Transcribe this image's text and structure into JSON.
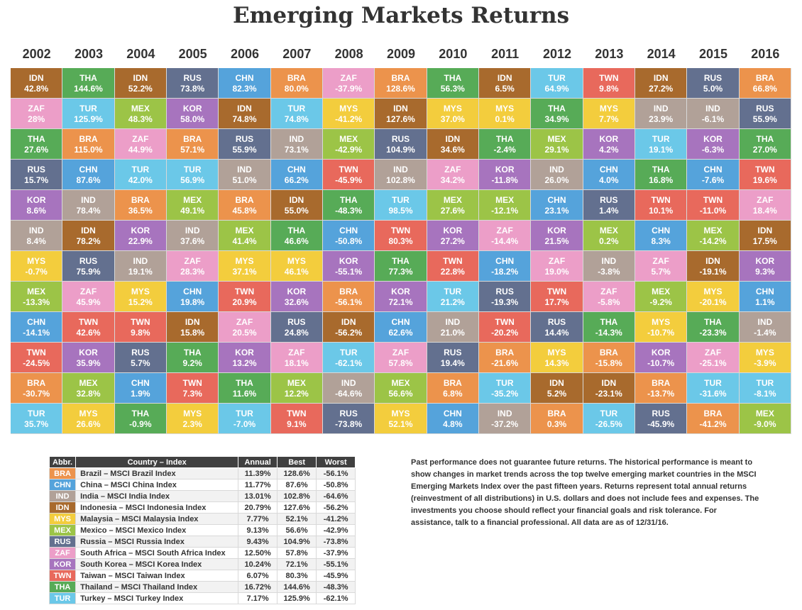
{
  "chart_data": {
    "type": "table",
    "title": "Emerging Markets Returns",
    "years": [
      "2002",
      "2003",
      "2004",
      "2005",
      "2006",
      "2007",
      "2008",
      "2009",
      "2010",
      "2011",
      "2012",
      "2013",
      "2014",
      "2015",
      "2016"
    ],
    "columns": [
      [
        [
          "IDN",
          "42.8%"
        ],
        [
          "ZAF",
          "28%"
        ],
        [
          "THA",
          "27.6%"
        ],
        [
          "RUS",
          "15.7%"
        ],
        [
          "KOR",
          "8.6%"
        ],
        [
          "IND",
          "8.4%"
        ],
        [
          "MYS",
          "-0.7%"
        ],
        [
          "MEX",
          "-13.3%"
        ],
        [
          "CHN",
          "-14.1%"
        ],
        [
          "TWN",
          "-24.5%"
        ],
        [
          "BRA",
          "-30.7%"
        ],
        [
          "TUR",
          "35.7%"
        ]
      ],
      [
        [
          "THA",
          "144.6%"
        ],
        [
          "TUR",
          "125.9%"
        ],
        [
          "BRA",
          "115.0%"
        ],
        [
          "CHN",
          "87.6%"
        ],
        [
          "IND",
          "78.4%"
        ],
        [
          "IDN",
          "78.2%"
        ],
        [
          "RUS",
          "75.9%"
        ],
        [
          "ZAF",
          "45.9%"
        ],
        [
          "TWN",
          "42.6%"
        ],
        [
          "KOR",
          "35.9%"
        ],
        [
          "MEX",
          "32.8%"
        ],
        [
          "MYS",
          "26.6%"
        ]
      ],
      [
        [
          "IDN",
          "52.2%"
        ],
        [
          "MEX",
          "48.3%"
        ],
        [
          "ZAF",
          "44.9%"
        ],
        [
          "TUR",
          "42.0%"
        ],
        [
          "BRA",
          "36.5%"
        ],
        [
          "KOR",
          "22.9%"
        ],
        [
          "IND",
          "19.1%"
        ],
        [
          "MYS",
          "15.2%"
        ],
        [
          "TWN",
          "9.8%"
        ],
        [
          "RUS",
          "5.7%"
        ],
        [
          "CHN",
          "1.9%"
        ],
        [
          "THA",
          "-0.9%"
        ]
      ],
      [
        [
          "RUS",
          "73.8%"
        ],
        [
          "KOR",
          "58.0%"
        ],
        [
          "BRA",
          "57.1%"
        ],
        [
          "TUR",
          "56.9%"
        ],
        [
          "MEX",
          "49.1%"
        ],
        [
          "IND",
          "37.6%"
        ],
        [
          "ZAF",
          "28.3%"
        ],
        [
          "CHN",
          "19.8%"
        ],
        [
          "IDN",
          "15.8%"
        ],
        [
          "THA",
          "9.2%"
        ],
        [
          "TWN",
          "7.3%"
        ],
        [
          "MYS",
          "2.3%"
        ]
      ],
      [
        [
          "CHN",
          "82.3%"
        ],
        [
          "IDN",
          "74.8%"
        ],
        [
          "RUS",
          "55.9%"
        ],
        [
          "IND",
          "51.0%"
        ],
        [
          "BRA",
          "45.8%"
        ],
        [
          "MEX",
          "41.4%"
        ],
        [
          "MYS",
          "37.1%"
        ],
        [
          "TWN",
          "20.9%"
        ],
        [
          "ZAF",
          "20.5%"
        ],
        [
          "KOR",
          "13.2%"
        ],
        [
          "THA",
          "11.6%"
        ],
        [
          "TUR",
          "-7.0%"
        ]
      ],
      [
        [
          "BRA",
          "80.0%"
        ],
        [
          "TUR",
          "74.8%"
        ],
        [
          "IND",
          "73.1%"
        ],
        [
          "CHN",
          "66.2%"
        ],
        [
          "IDN",
          "55.0%"
        ],
        [
          "THA",
          "46.6%"
        ],
        [
          "MYS",
          "46.1%"
        ],
        [
          "KOR",
          "32.6%"
        ],
        [
          "RUS",
          "24.8%"
        ],
        [
          "ZAF",
          "18.1%"
        ],
        [
          "MEX",
          "12.2%"
        ],
        [
          "TWN",
          "9.1%"
        ]
      ],
      [
        [
          "ZAF",
          "-37.9%"
        ],
        [
          "MYS",
          "-41.2%"
        ],
        [
          "MEX",
          "-42.9%"
        ],
        [
          "TWN",
          "-45.9%"
        ],
        [
          "THA",
          "-48.3%"
        ],
        [
          "CHN",
          "-50.8%"
        ],
        [
          "KOR",
          "-55.1%"
        ],
        [
          "BRA",
          "-56.1%"
        ],
        [
          "IDN",
          "-56.2%"
        ],
        [
          "TUR",
          "-62.1%"
        ],
        [
          "IND",
          "-64.6%"
        ],
        [
          "RUS",
          "-73.8%"
        ]
      ],
      [
        [
          "BRA",
          "128.6%"
        ],
        [
          "IDN",
          "127.6%"
        ],
        [
          "RUS",
          "104.9%"
        ],
        [
          "IND",
          "102.8%"
        ],
        [
          "TUR",
          "98.5%"
        ],
        [
          "TWN",
          "80.3%"
        ],
        [
          "THA",
          "77.3%"
        ],
        [
          "KOR",
          "72.1%"
        ],
        [
          "CHN",
          "62.6%"
        ],
        [
          "ZAF",
          "57.8%"
        ],
        [
          "MEX",
          "56.6%"
        ],
        [
          "MYS",
          "52.1%"
        ]
      ],
      [
        [
          "THA",
          "56.3%"
        ],
        [
          "MYS",
          "37.0%"
        ],
        [
          "IDN",
          "34.6%"
        ],
        [
          "ZAF",
          "34.2%"
        ],
        [
          "MEX",
          "27.6%"
        ],
        [
          "KOR",
          "27.2%"
        ],
        [
          "TWN",
          "22.8%"
        ],
        [
          "TUR",
          "21.2%"
        ],
        [
          "IND",
          "21.0%"
        ],
        [
          "RUS",
          "19.4%"
        ],
        [
          "BRA",
          "6.8%"
        ],
        [
          "CHN",
          "4.8%"
        ]
      ],
      [
        [
          "IDN",
          "6.5%"
        ],
        [
          "MYS",
          "0.1%"
        ],
        [
          "THA",
          "-2.4%"
        ],
        [
          "KOR",
          "-11.8%"
        ],
        [
          "MEX",
          "-12.1%"
        ],
        [
          "ZAF",
          "-14.4%"
        ],
        [
          "CHN",
          "-18.2%"
        ],
        [
          "RUS",
          "-19.3%"
        ],
        [
          "TWN",
          "-20.2%"
        ],
        [
          "BRA",
          "-21.6%"
        ],
        [
          "TUR",
          "-35.2%"
        ],
        [
          "IND",
          "-37.2%"
        ]
      ],
      [
        [
          "TUR",
          "64.9%"
        ],
        [
          "THA",
          "34.9%"
        ],
        [
          "MEX",
          "29.1%"
        ],
        [
          "IND",
          "26.0%"
        ],
        [
          "CHN",
          "23.1%"
        ],
        [
          "KOR",
          "21.5%"
        ],
        [
          "ZAF",
          "19.0%"
        ],
        [
          "TWN",
          "17.7%"
        ],
        [
          "RUS",
          "14.4%"
        ],
        [
          "MYS",
          "14.3%"
        ],
        [
          "IDN",
          "5.2%"
        ],
        [
          "BRA",
          "0.3%"
        ]
      ],
      [
        [
          "TWN",
          "9.8%"
        ],
        [
          "MYS",
          "7.7%"
        ],
        [
          "KOR",
          "4.2%"
        ],
        [
          "CHN",
          "4.0%"
        ],
        [
          "RUS",
          "1.4%"
        ],
        [
          "MEX",
          "0.2%"
        ],
        [
          "IND",
          "-3.8%"
        ],
        [
          "ZAF",
          "-5.8%"
        ],
        [
          "THA",
          "-14.3%"
        ],
        [
          "BRA",
          "-15.8%"
        ],
        [
          "IDN",
          "-23.1%"
        ],
        [
          "TUR",
          "-26.5%"
        ]
      ],
      [
        [
          "IDN",
          "27.2%"
        ],
        [
          "IND",
          "23.9%"
        ],
        [
          "TUR",
          "19.1%"
        ],
        [
          "THA",
          "16.8%"
        ],
        [
          "TWN",
          "10.1%"
        ],
        [
          "CHN",
          "8.3%"
        ],
        [
          "ZAF",
          "5.7%"
        ],
        [
          "MEX",
          "-9.2%"
        ],
        [
          "MYS",
          "-10.7%"
        ],
        [
          "KOR",
          "-10.7%"
        ],
        [
          "BRA",
          "-13.7%"
        ],
        [
          "RUS",
          "-45.9%"
        ]
      ],
      [
        [
          "RUS",
          "5.0%"
        ],
        [
          "IND",
          "-6.1%"
        ],
        [
          "KOR",
          "-6.3%"
        ],
        [
          "CHN",
          "-7.6%"
        ],
        [
          "TWN",
          "-11.0%"
        ],
        [
          "MEX",
          "-14.2%"
        ],
        [
          "IDN",
          "-19.1%"
        ],
        [
          "MYS",
          "-20.1%"
        ],
        [
          "THA",
          "-23.3%"
        ],
        [
          "ZAF",
          "-25.1%"
        ],
        [
          "TUR",
          "-31.6%"
        ],
        [
          "BRA",
          "-41.2%"
        ]
      ],
      [
        [
          "BRA",
          "66.8%"
        ],
        [
          "RUS",
          "55.9%"
        ],
        [
          "THA",
          "27.0%"
        ],
        [
          "TWN",
          "19.6%"
        ],
        [
          "ZAF",
          "18.4%"
        ],
        [
          "IDN",
          "17.5%"
        ],
        [
          "KOR",
          "9.3%"
        ],
        [
          "CHN",
          "1.1%"
        ],
        [
          "IND",
          "-1.4%"
        ],
        [
          "MYS",
          "-3.9%"
        ],
        [
          "TUR",
          "-8.1%"
        ],
        [
          "MEX",
          "-9.0%"
        ]
      ]
    ],
    "colors": {
      "BRA": "#ec934c",
      "CHN": "#55a3db",
      "IND": "#b1a198",
      "IDN": "#a86a2d",
      "MYS": "#f3cd3d",
      "MEX": "#9cc447",
      "RUS": "#63708f",
      "ZAF": "#ec9ec8",
      "KOR": "#a774be",
      "TWN": "#e8695c",
      "THA": "#57ab57",
      "TUR": "#6bc8e8"
    }
  },
  "legend": {
    "headers": [
      "Abbr.",
      "Country – Index",
      "Annual",
      "Best",
      "Worst"
    ],
    "rows": [
      {
        "abbr": "BRA",
        "name": "Brazil – MSCI Brazil Index",
        "annual": "11.39%",
        "best": "128.6%",
        "worst": "-56.1%"
      },
      {
        "abbr": "CHN",
        "name": "China – MSCI China Index",
        "annual": "11.77%",
        "best": "87.6%",
        "worst": "-50.8%"
      },
      {
        "abbr": "IND",
        "name": "India – MSCI India Index",
        "annual": "13.01%",
        "best": "102.8%",
        "worst": "-64.6%"
      },
      {
        "abbr": "IDN",
        "name": "Indonesia – MSCI Indonesia Index",
        "annual": "20.79%",
        "best": "127.6%",
        "worst": "-56.2%"
      },
      {
        "abbr": "MYS",
        "name": "Malaysia – MSCI Malaysia Index",
        "annual": "7.77%",
        "best": "52.1%",
        "worst": "-41.2%"
      },
      {
        "abbr": "MEX",
        "name": "Mexico – MSCI Mexico Index",
        "annual": "9.13%",
        "best": "56.6%",
        "worst": "-42.9%"
      },
      {
        "abbr": "RUS",
        "name": "Russia – MSCI Russia Index",
        "annual": "9.43%",
        "best": "104.9%",
        "worst": "-73.8%"
      },
      {
        "abbr": "ZAF",
        "name": "South Africa – MSCI South Africa Index",
        "annual": "12.50%",
        "best": "57.8%",
        "worst": "-37.9%"
      },
      {
        "abbr": "KOR",
        "name": "South Korea – MSCI Korea Index",
        "annual": "10.24%",
        "best": "72.1%",
        "worst": "-55.1%"
      },
      {
        "abbr": "TWN",
        "name": "Taiwan – MSCI Taiwan Index",
        "annual": "6.07%",
        "best": "80.3%",
        "worst": "-45.9%"
      },
      {
        "abbr": "THA",
        "name": "Thailand – MSCI Thailand Index",
        "annual": "16.72%",
        "best": "144.6%",
        "worst": "-48.3%"
      },
      {
        "abbr": "TUR",
        "name": "Turkey – MSCI Turkey Index",
        "annual": "7.17%",
        "best": "125.9%",
        "worst": "-62.1%"
      }
    ]
  },
  "disclaimer": "Past performance does not guarantee future returns. The historical performance is meant to show changes in market trends across the top twelve emerging market countries in the MSCI Emerging Markets Index over the past fifteen years. Returns represent total annual returns (reinvestment of all distributions) in U.S. dollars and does not include fees and expenses. The investments you choose should reflect your financial goals and risk tolerance. For assistance, talk to a financial professional. All data are as of 12/31/16."
}
